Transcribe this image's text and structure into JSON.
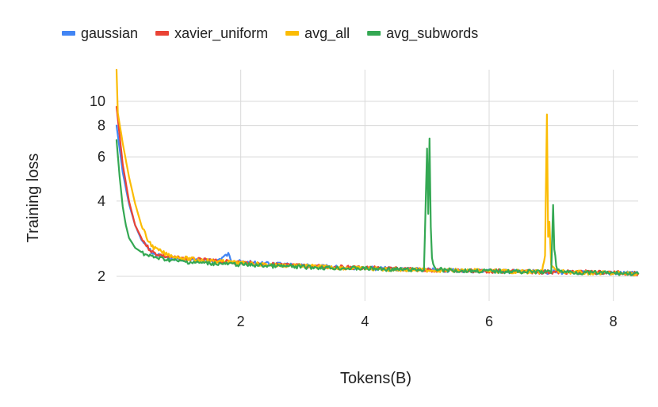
{
  "chart_data": {
    "type": "line",
    "title": "",
    "xlabel": "Tokens(B)",
    "ylabel": "Training loss",
    "xlim": [
      0,
      8.4
    ],
    "ylim": [
      1.6,
      14
    ],
    "y_scale": "log",
    "grid": true,
    "legend_position": "top",
    "x_ticks": [
      2,
      4,
      6,
      8
    ],
    "y_ticks": [
      2,
      4,
      6,
      8,
      10
    ],
    "series": [
      {
        "name": "gaussian",
        "color": "#4285F4",
        "x": [
          0.0,
          0.1,
          0.2,
          0.3,
          0.4,
          0.5,
          0.6,
          0.8,
          1.0,
          1.3,
          1.6,
          1.8,
          1.85,
          2.0,
          2.5,
          3.0,
          3.5,
          4.0,
          4.5,
          5.0,
          5.5,
          6.0,
          6.5,
          7.0,
          7.5,
          8.0,
          8.4
        ],
        "y": [
          8.0,
          5.2,
          3.9,
          3.2,
          2.8,
          2.6,
          2.45,
          2.38,
          2.35,
          2.32,
          2.3,
          2.45,
          2.33,
          2.28,
          2.24,
          2.2,
          2.18,
          2.16,
          2.14,
          2.12,
          2.11,
          2.1,
          2.09,
          2.08,
          2.07,
          2.06,
          2.05
        ]
      },
      {
        "name": "xavier_uniform",
        "color": "#EA4335",
        "x": [
          0.0,
          0.1,
          0.2,
          0.3,
          0.4,
          0.5,
          0.6,
          0.8,
          1.0,
          1.3,
          1.6,
          2.0,
          2.5,
          3.0,
          3.5,
          4.0,
          4.5,
          5.0,
          5.5,
          6.0,
          6.5,
          7.0,
          7.5,
          8.0,
          8.4
        ],
        "y": [
          9.5,
          5.6,
          4.0,
          3.2,
          2.85,
          2.62,
          2.48,
          2.4,
          2.36,
          2.33,
          2.3,
          2.27,
          2.23,
          2.2,
          2.18,
          2.16,
          2.14,
          2.12,
          2.11,
          2.1,
          2.09,
          2.08,
          2.08,
          2.07,
          2.05
        ]
      },
      {
        "name": "avg_all",
        "color": "#FBBC04",
        "x": [
          0.0,
          0.02,
          0.1,
          0.2,
          0.3,
          0.4,
          0.5,
          0.6,
          0.8,
          1.0,
          1.3,
          1.6,
          2.0,
          2.5,
          3.0,
          3.5,
          4.0,
          4.5,
          5.0,
          5.5,
          6.0,
          6.5,
          6.85,
          6.9,
          6.93,
          6.95,
          6.97,
          7.0,
          7.1,
          7.5,
          8.0,
          8.4
        ],
        "y": [
          14.0,
          9.0,
          6.8,
          5.0,
          3.9,
          3.2,
          2.8,
          2.6,
          2.45,
          2.38,
          2.33,
          2.3,
          2.26,
          2.22,
          2.2,
          2.17,
          2.15,
          2.13,
          2.12,
          2.11,
          2.1,
          2.09,
          2.08,
          2.4,
          9.0,
          2.9,
          3.3,
          2.2,
          2.09,
          2.07,
          2.06,
          2.05
        ]
      },
      {
        "name": "avg_subwords",
        "color": "#34A853",
        "x": [
          0.0,
          0.05,
          0.1,
          0.15,
          0.2,
          0.3,
          0.4,
          0.5,
          0.7,
          1.0,
          1.3,
          1.6,
          2.0,
          2.5,
          3.0,
          3.5,
          4.0,
          4.5,
          4.95,
          5.0,
          5.02,
          5.04,
          5.06,
          5.08,
          5.1,
          5.15,
          5.3,
          5.5,
          6.0,
          6.5,
          7.0,
          7.03,
          7.05,
          7.08,
          7.12,
          7.3,
          7.5,
          8.0,
          8.4
        ],
        "y": [
          7.0,
          5.0,
          3.8,
          3.2,
          2.85,
          2.6,
          2.5,
          2.42,
          2.36,
          2.3,
          2.27,
          2.25,
          2.23,
          2.2,
          2.18,
          2.16,
          2.15,
          2.13,
          2.12,
          6.5,
          3.5,
          7.0,
          3.1,
          2.4,
          2.2,
          2.14,
          2.12,
          2.11,
          2.1,
          2.09,
          2.08,
          3.9,
          2.6,
          2.2,
          2.1,
          2.08,
          2.07,
          2.06,
          2.05
        ]
      }
    ]
  }
}
